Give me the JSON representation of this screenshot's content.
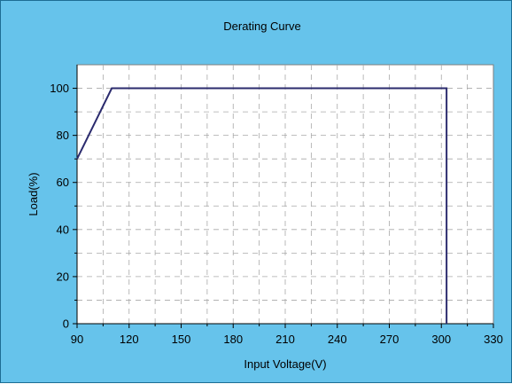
{
  "chart_data": {
    "type": "line",
    "title": "Derating Curve",
    "xlabel": "Input Voltage(V)",
    "ylabel": "Load(%)",
    "xlim": [
      90,
      330
    ],
    "ylim": [
      0,
      110
    ],
    "x_ticks": [
      90,
      120,
      150,
      180,
      210,
      240,
      270,
      300,
      330
    ],
    "y_ticks": [
      0,
      20,
      40,
      60,
      80,
      100
    ],
    "grid": true,
    "series": [
      {
        "color": "#2b2b6e",
        "x": [
          90,
          110,
          303,
          303
        ],
        "y": [
          70,
          100,
          100,
          0
        ]
      }
    ]
  },
  "colors": {
    "background": "#66c3eb",
    "plot_area": "#ffffff",
    "grid": "#a8a8a8",
    "line": "#2b2b6e"
  }
}
